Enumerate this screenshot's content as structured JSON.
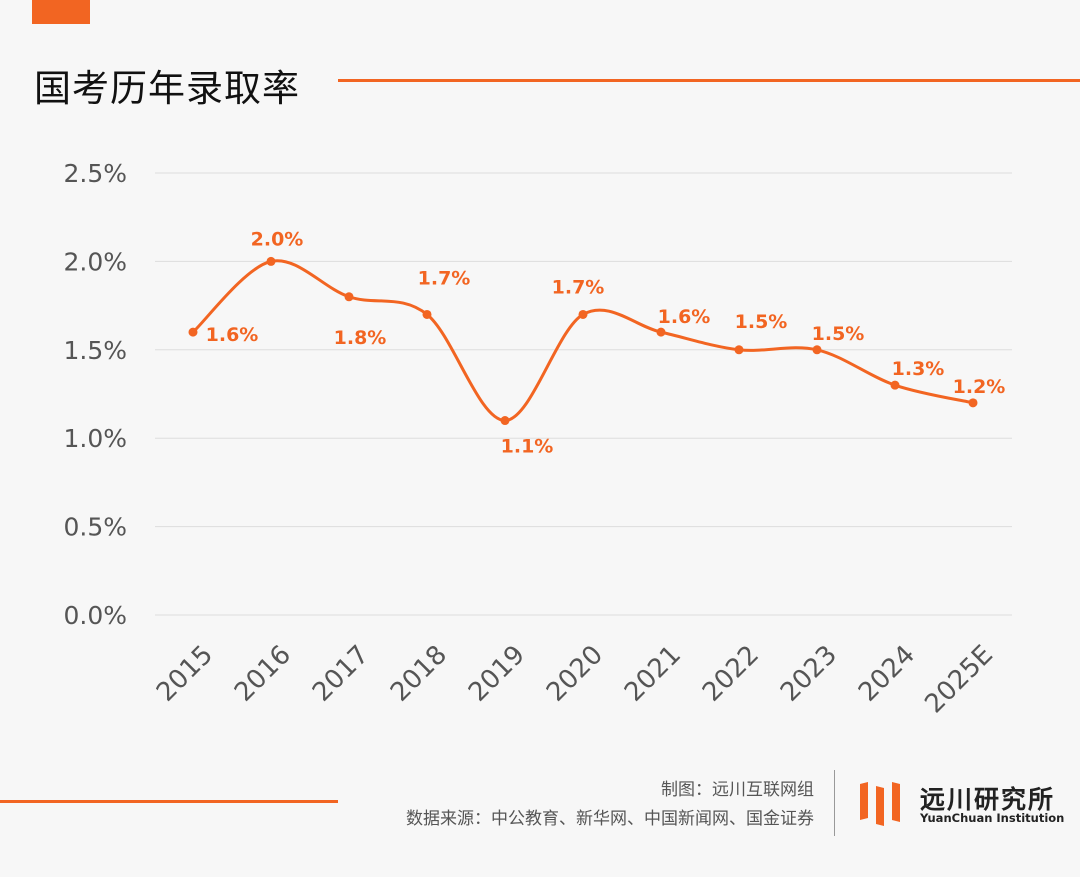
{
  "header": {
    "title": "国考历年录取率"
  },
  "footer": {
    "credit": "制图：远川互联网组",
    "source": "数据来源：中公教育、新华网、中国新闻网、国金证券"
  },
  "logo": {
    "name_cn": "远川研究所",
    "name_en": "YuanChuan Institution"
  },
  "colors": {
    "accent": "#f26522",
    "grid": "#dddddd",
    "text": "#555555"
  },
  "chart_data": {
    "type": "line",
    "title": "国考历年录取率",
    "xlabel": "",
    "ylabel": "",
    "categories": [
      "2015",
      "2016",
      "2017",
      "2018",
      "2019",
      "2020",
      "2021",
      "2022",
      "2023",
      "2024",
      "2025E"
    ],
    "series": [
      {
        "values": [
          1.6,
          2.0,
          1.8,
          1.7,
          1.1,
          1.7,
          1.6,
          1.5,
          1.5,
          1.3,
          1.2
        ]
      }
    ],
    "data_labels": [
      "1.6%",
      "2.0%",
      "1.8%",
      "1.7%",
      "1.1%",
      "1.7%",
      "1.6%",
      "1.5%",
      "1.5%",
      "1.3%",
      "1.2%"
    ],
    "yticks": [
      "0.0%",
      "0.5%",
      "1.0%",
      "1.5%",
      "2.0%",
      "2.5%"
    ],
    "ylim": [
      0,
      2.5
    ],
    "grid": true,
    "smooth": true,
    "legend": "none"
  }
}
